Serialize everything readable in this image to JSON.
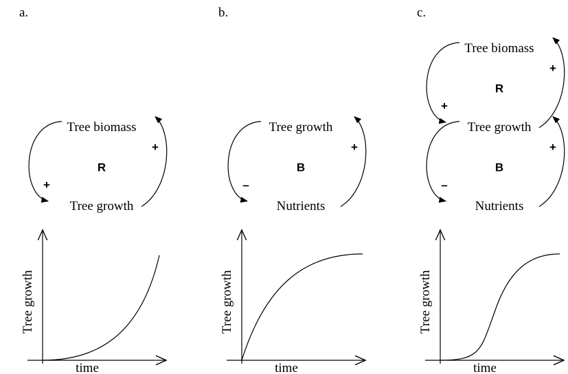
{
  "panels": [
    {
      "label": "a.",
      "nodes": [
        "Tree biomass",
        "Tree growth"
      ],
      "loops": [
        {
          "type": "R",
          "left_sign": "+",
          "right_sign": "+"
        }
      ],
      "y_label": "Tree growth",
      "x_label": "time"
    },
    {
      "label": "b.",
      "nodes": [
        "Tree growth",
        "Nutrients"
      ],
      "loops": [
        {
          "type": "B",
          "left_sign": "–",
          "right_sign": "+"
        }
      ],
      "y_label": "Tree growth",
      "x_label": "time"
    },
    {
      "label": "c.",
      "nodes": [
        "Tree biomass",
        "Tree growth",
        "Nutrients"
      ],
      "loops": [
        {
          "type": "R",
          "left_sign": "+",
          "right_sign": "+"
        },
        {
          "type": "B",
          "left_sign": "–",
          "right_sign": "+"
        }
      ],
      "y_label": "Tree growth",
      "x_label": "time"
    }
  ]
}
